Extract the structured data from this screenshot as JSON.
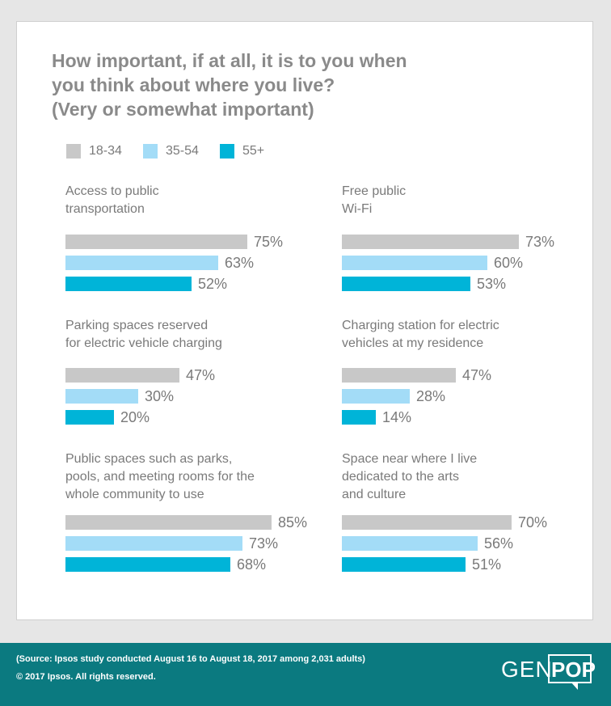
{
  "chart_data": {
    "type": "bar",
    "title_lines": [
      "How important, if at all, it is to you when",
      "you think about where you live?",
      "(Very or somewhat important)"
    ],
    "series": [
      {
        "name": "18-34",
        "color": "#c8c8c8"
      },
      {
        "name": "35-54",
        "color": "#a3dcf7"
      },
      {
        "name": "55+",
        "color": "#00b4d8"
      }
    ],
    "xlim": [
      0,
      100
    ],
    "panels": [
      {
        "title_lines": [
          "Access to public",
          "transportation"
        ],
        "values": [
          75,
          63,
          52
        ],
        "labels": [
          "75%",
          "63%",
          "52%"
        ]
      },
      {
        "title_lines": [
          "Free public",
          "Wi-Fi"
        ],
        "values": [
          73,
          60,
          53
        ],
        "labels": [
          "73%",
          "60%",
          "53%"
        ]
      },
      {
        "title_lines": [
          "Parking spaces reserved",
          "for electric vehicle charging"
        ],
        "values": [
          47,
          30,
          20
        ],
        "labels": [
          "47%",
          "30%",
          "20%"
        ]
      },
      {
        "title_lines": [
          "Charging station for electric",
          "vehicles at my residence"
        ],
        "values": [
          47,
          28,
          14
        ],
        "labels": [
          "47%",
          "28%",
          "14%"
        ]
      },
      {
        "title_lines": [
          "Public spaces such as parks,",
          "pools, and meeting rooms for the",
          "whole community to use"
        ],
        "values": [
          85,
          73,
          68
        ],
        "labels": [
          "85%",
          "73%",
          "68%"
        ]
      },
      {
        "title_lines": [
          "Space near where I live",
          "dedicated to the arts",
          "and culture"
        ],
        "values": [
          70,
          56,
          51
        ],
        "labels": [
          "70%",
          "56%",
          "51%"
        ]
      }
    ]
  },
  "footer": {
    "source": "(Source: Ipsos study conducted August 16 to August 18, 2017 among 2,031 adults)",
    "copyright": "© 2017 Ipsos. All rights reserved.",
    "logo_left": "GEN",
    "logo_right": "POP",
    "background_color": "#0b7a80"
  }
}
